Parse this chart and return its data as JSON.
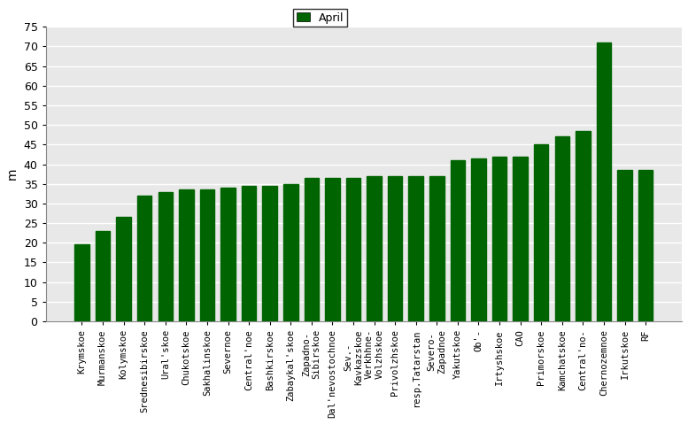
{
  "categories": [
    "Krymskoe",
    "Murmanskoe",
    "Kolymskoe",
    "Srednesibirskoe",
    "Ural'skoe",
    "Chukotskoe",
    "Sakhalinskoe",
    "Severnoe",
    "Central'noe",
    "Bashkirskoe",
    "Zabaykal'skoe",
    "Zapadno-\nSibirskoe",
    "Dal'nevostochnoe",
    "Sev.-\nKavkazskoe",
    "Verkhhne-\nVolzhskoe",
    "Privolzhskoe",
    "resp.Tatarstan",
    "Severo-\nZapadnoe",
    "Yakutskoe",
    "Ob'-",
    "Irtyshskoe",
    "CAO",
    "Primorskoe",
    "Kamchatskoe",
    "Central'no-",
    "Chernozemnoe",
    "Irkutskoe",
    "RF"
  ],
  "values": [
    19.5,
    23.0,
    26.5,
    32.0,
    33.0,
    33.5,
    33.5,
    34.0,
    34.5,
    34.5,
    35.0,
    36.5,
    36.5,
    36.5,
    37.0,
    37.0,
    37.0,
    37.0,
    41.0,
    41.5,
    42.0,
    42.0,
    45.0,
    47.0,
    48.5,
    71.0,
    38.5,
    38.5
  ],
  "bar_color": "#006400",
  "ylabel": "m",
  "ylim": [
    0,
    75
  ],
  "yticks": [
    0,
    5,
    10,
    15,
    20,
    25,
    30,
    35,
    40,
    45,
    50,
    55,
    60,
    65,
    70,
    75
  ],
  "legend_label": "April",
  "legend_color": "#006400",
  "title": "",
  "bg_color": "#e8e8e8",
  "grid_color": "white",
  "font_size": 7.5
}
